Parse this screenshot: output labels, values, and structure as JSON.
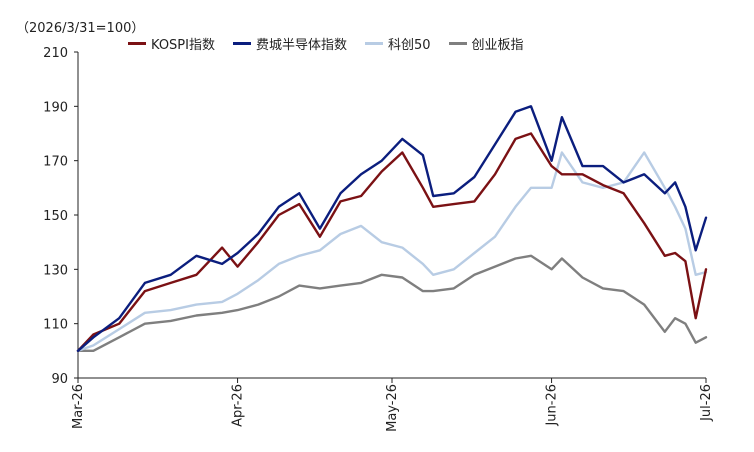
{
  "chart_data": {
    "type": "line",
    "ylabel": "（2026/3/31=100）",
    "ylim": [
      90,
      210
    ],
    "yticks": [
      90,
      110,
      130,
      150,
      170,
      190,
      210
    ],
    "x": [
      "2026-03-01",
      "2026-03-04",
      "2026-03-09",
      "2026-03-14",
      "2026-03-19",
      "2026-03-24",
      "2026-03-29",
      "2026-04-01",
      "2026-04-05",
      "2026-04-09",
      "2026-04-13",
      "2026-04-17",
      "2026-04-21",
      "2026-04-25",
      "2026-04-29",
      "2026-05-03",
      "2026-05-07",
      "2026-05-09",
      "2026-05-13",
      "2026-05-17",
      "2026-05-21",
      "2026-05-25",
      "2026-05-28",
      "2026-06-01",
      "2026-06-03",
      "2026-06-07",
      "2026-06-11",
      "2026-06-15",
      "2026-06-19",
      "2026-06-23",
      "2026-06-25",
      "2026-06-27",
      "2026-06-29",
      "2026-07-01"
    ],
    "xticks": [
      {
        "date": "2026-03-01",
        "label": "Mar-26"
      },
      {
        "date": "2026-04-01",
        "label": "Apr-26"
      },
      {
        "date": "2026-05-01",
        "label": "May-26"
      },
      {
        "date": "2026-06-01",
        "label": "Jun-26"
      },
      {
        "date": "2026-07-01",
        "label": "Jul-26"
      }
    ],
    "series": [
      {
        "name": "KOSPI指数",
        "color": "#7b1114",
        "values": [
          100,
          106,
          110,
          122,
          125,
          128,
          138,
          131,
          140,
          150,
          154,
          142,
          155,
          157,
          166,
          173,
          160,
          153,
          154,
          155,
          165,
          178,
          180,
          168,
          165,
          165,
          161,
          158,
          147,
          135,
          136,
          133,
          112,
          130
        ]
      },
      {
        "name": "费城半导体指数",
        "color": "#0b1e7e",
        "values": [
          100,
          105,
          112,
          125,
          128,
          135,
          132,
          136,
          143,
          153,
          158,
          145,
          158,
          165,
          170,
          178,
          172,
          157,
          158,
          164,
          176,
          188,
          190,
          170,
          186,
          168,
          168,
          162,
          165,
          158,
          162,
          153,
          137,
          149
        ]
      },
      {
        "name": "科创50",
        "color": "#b8cce4",
        "values": [
          100,
          102,
          108,
          114,
          115,
          117,
          118,
          121,
          126,
          132,
          135,
          137,
          143,
          146,
          140,
          138,
          132,
          128,
          130,
          136,
          142,
          153,
          160,
          160,
          173,
          162,
          160,
          162,
          173,
          160,
          153,
          145,
          128,
          129
        ]
      },
      {
        "name": "创业板指",
        "color": "#7f7f7f",
        "values": [
          100,
          100,
          105,
          110,
          111,
          113,
          114,
          115,
          117,
          120,
          124,
          123,
          124,
          125,
          128,
          127,
          122,
          122,
          123,
          128,
          131,
          134,
          135,
          130,
          134,
          127,
          123,
          122,
          117,
          107,
          112,
          110,
          103,
          105
        ]
      }
    ]
  }
}
